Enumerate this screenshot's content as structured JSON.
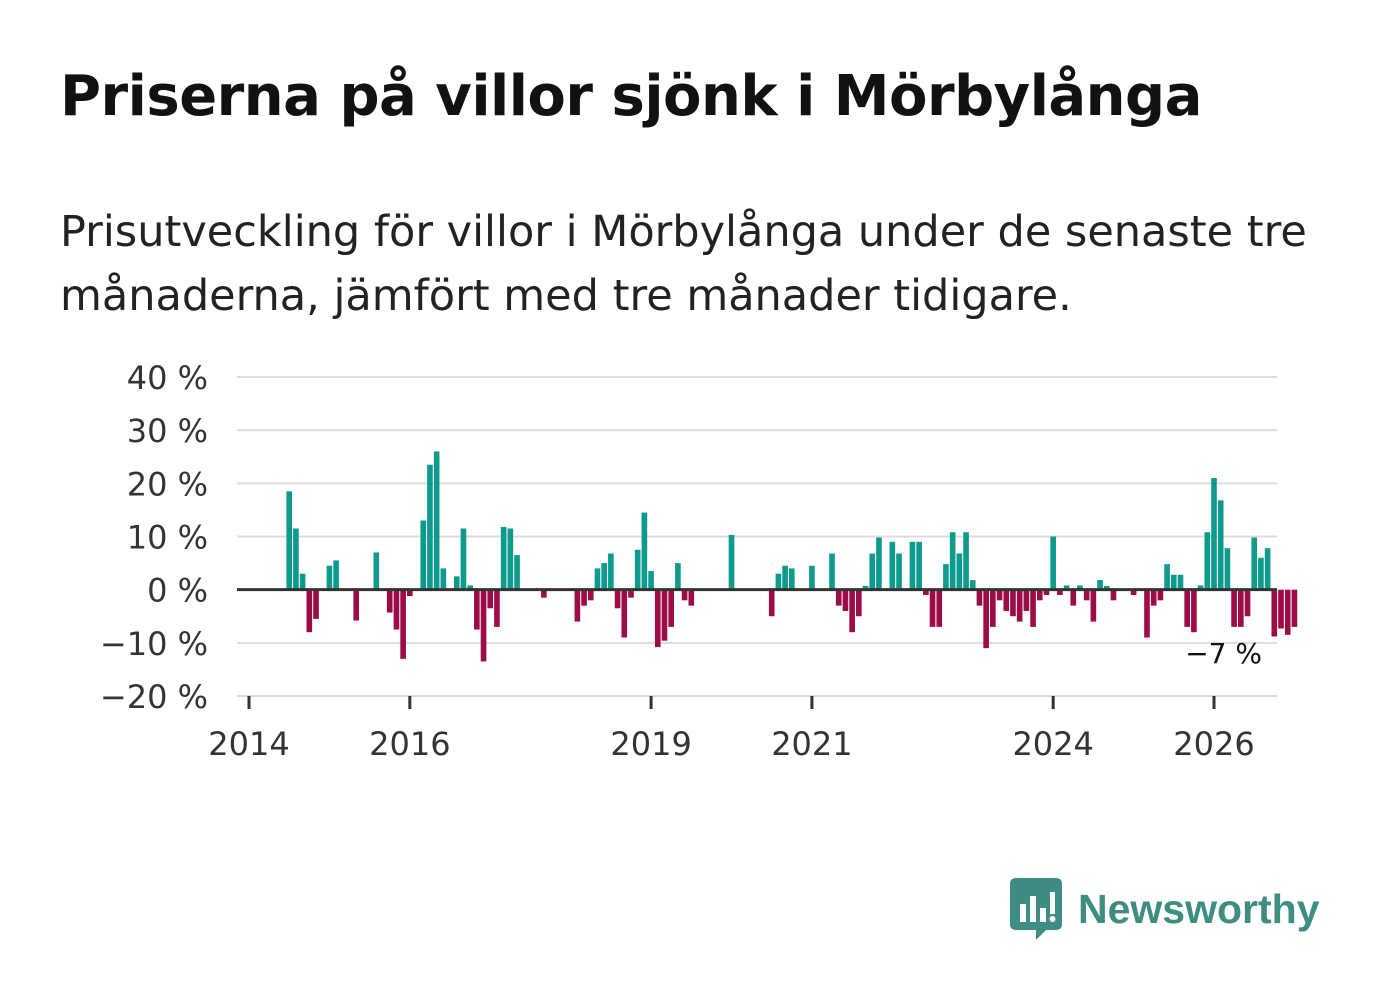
{
  "title": "Priserna på villor sjönk i Mörbylånga",
  "subtitle": "Prisutveckling för villor i Mörbylånga under de senaste tre månaderna, jämfört med tre månader tidigare.",
  "brand": {
    "name": "Newsworthy",
    "icon": "newsworthy-logo-icon"
  },
  "colors": {
    "positive": "#0e9a8c",
    "negative": "#9c0c47",
    "zero_line": "#333333",
    "grid": "#dcdcdc",
    "brand": "#3e8c82"
  },
  "chart_data": {
    "type": "bar",
    "title": "Priserna på villor sjönk i Mörbylånga",
    "xlabel": "",
    "ylabel": "",
    "ylim": [
      -20,
      40
    ],
    "yticks": [
      40,
      30,
      20,
      10,
      0,
      -10,
      -20
    ],
    "ytick_labels": [
      "40 %",
      "30 %",
      "20 %",
      "10 %",
      "0 %",
      "−10 %",
      "−20 %"
    ],
    "xticks": [
      2014,
      2016,
      2019,
      2021,
      2024,
      2026
    ],
    "xtick_labels": [
      "2014",
      "2016",
      "2019",
      "2021",
      "2024",
      "2026"
    ],
    "x_start": 2014.0,
    "x_step_months": 1,
    "grid": true,
    "annotation": {
      "text": "−7 %",
      "value": -7
    },
    "values": [
      0,
      0,
      0,
      0,
      0,
      0,
      18.5,
      11.5,
      3,
      -8,
      -5.5,
      0,
      4.5,
      5.5,
      0,
      0,
      -5.8,
      0,
      0,
      7,
      0,
      -4.3,
      -7.5,
      -13,
      -1.2,
      0,
      13,
      23.5,
      26,
      4,
      0,
      2.5,
      11.5,
      0.8,
      -7.5,
      -13.5,
      -3.5,
      -7,
      11.8,
      11.5,
      6.5,
      0,
      0,
      0,
      -1.5,
      0,
      0,
      0,
      0,
      -6,
      -3,
      -2,
      4,
      5,
      6.8,
      -3.5,
      -9,
      -1.5,
      7.5,
      14.5,
      3.5,
      -10.8,
      -9.6,
      -7,
      5,
      -2,
      -3,
      0,
      0,
      0,
      0,
      0,
      10.3,
      0,
      0,
      0,
      0,
      0,
      -5,
      3,
      4.5,
      4,
      0,
      0,
      4.5,
      0,
      0,
      6.8,
      -3,
      -4,
      -8,
      -5,
      0.7,
      6.8,
      9.8,
      0,
      9,
      6.8,
      0,
      9,
      9,
      -1,
      -7,
      -7,
      4.8,
      10.8,
      6.8,
      10.8,
      1.8,
      -3,
      -11,
      -7,
      -2,
      -4,
      -5,
      -6,
      -4,
      -7,
      -2,
      -1,
      10,
      -1,
      0.8,
      -3,
      0.8,
      -2,
      -6,
      1.8,
      0.7,
      -2,
      0,
      0,
      -1,
      0,
      -9,
      -3,
      -2,
      4.8,
      2.8,
      2.8,
      -7,
      -8,
      0.8,
      10.8,
      21,
      16.8,
      7.8,
      -7,
      -7,
      -5,
      9.8,
      6,
      7.8,
      -8.8,
      -7.3,
      -8.5,
      -7,
      0,
      0,
      0,
      0,
      0,
      0,
      0,
      0
    ]
  }
}
